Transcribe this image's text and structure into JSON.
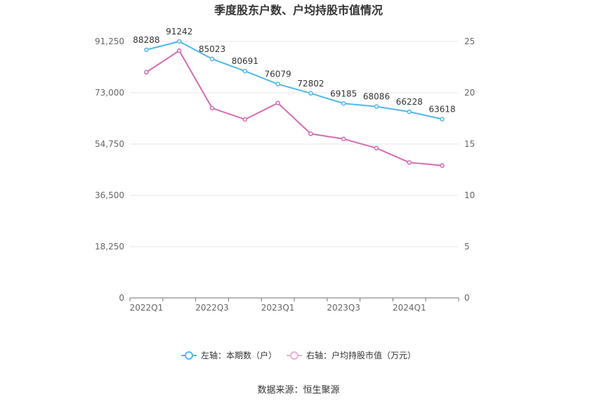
{
  "chart_data": {
    "type": "line",
    "title": "季度股东户数、户均持股市值情况",
    "categories": [
      "2022Q1",
      "2022Q2",
      "2022Q3",
      "2022Q4",
      "2023Q1",
      "2023Q2",
      "2023Q3",
      "2023Q4",
      "2024Q1",
      "2024Q2"
    ],
    "x_tick_labels": [
      "2022Q1",
      "2022Q3",
      "2023Q1",
      "2023Q3",
      "2024Q1"
    ],
    "y_left": {
      "ylim": [
        0,
        91250
      ],
      "ticks": [
        "0",
        "18,250",
        "36,500",
        "54,750",
        "73,000",
        "91,250"
      ]
    },
    "y_right": {
      "ylim": [
        0,
        25
      ],
      "ticks": [
        "0",
        "5",
        "10",
        "15",
        "20",
        "25"
      ]
    },
    "series": [
      {
        "name": "左轴：本期数（户）",
        "axis": "left",
        "color": "#4fb8ea",
        "values": [
          88288,
          91242,
          85023,
          80691,
          76079,
          72802,
          69185,
          68086,
          66228,
          63618
        ],
        "labels": [
          "88288",
          "91242",
          "85023",
          "80691",
          "76079",
          "72802",
          "69185",
          "68086",
          "66228",
          "63618"
        ]
      },
      {
        "name": "右轴：户均持股市值（万元）",
        "axis": "right",
        "color": "#d66bb0",
        "values": [
          22.0,
          24.1,
          18.5,
          17.4,
          19.0,
          16.0,
          15.5,
          14.6,
          13.2,
          12.9
        ]
      }
    ],
    "grid": true,
    "legend_position": "bottom"
  },
  "source": "数据来源：恒生聚源"
}
